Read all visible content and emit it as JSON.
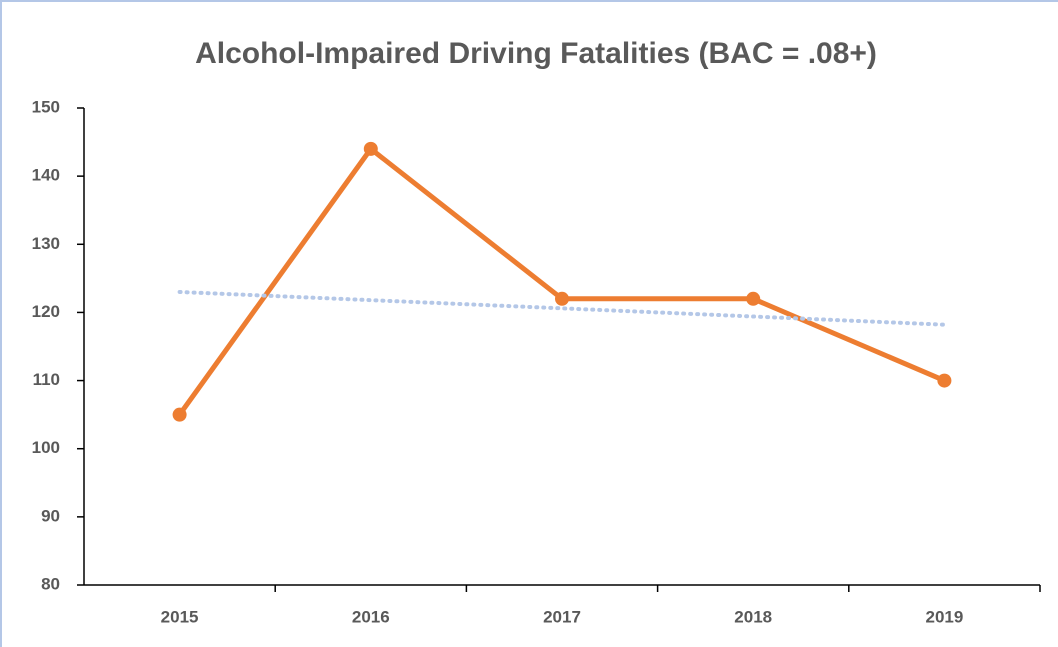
{
  "chart_data": {
    "type": "line",
    "title": "Alcohol-Impaired Driving Fatalities (BAC = .08+)",
    "categories": [
      "2015",
      "2016",
      "2017",
      "2018",
      "2019"
    ],
    "series": [
      {
        "color": "#ed7d31",
        "values": [
          105,
          144,
          122,
          122,
          110
        ],
        "markers": true
      },
      {
        "color": "#b4c7e7",
        "values": [
          123,
          121.8,
          120.6,
          119.4,
          118.2
        ],
        "dashed": true
      }
    ],
    "ylim": [
      80,
      150
    ],
    "yticks": [
      80,
      90,
      100,
      110,
      120,
      130,
      140,
      150
    ],
    "grid": false
  }
}
